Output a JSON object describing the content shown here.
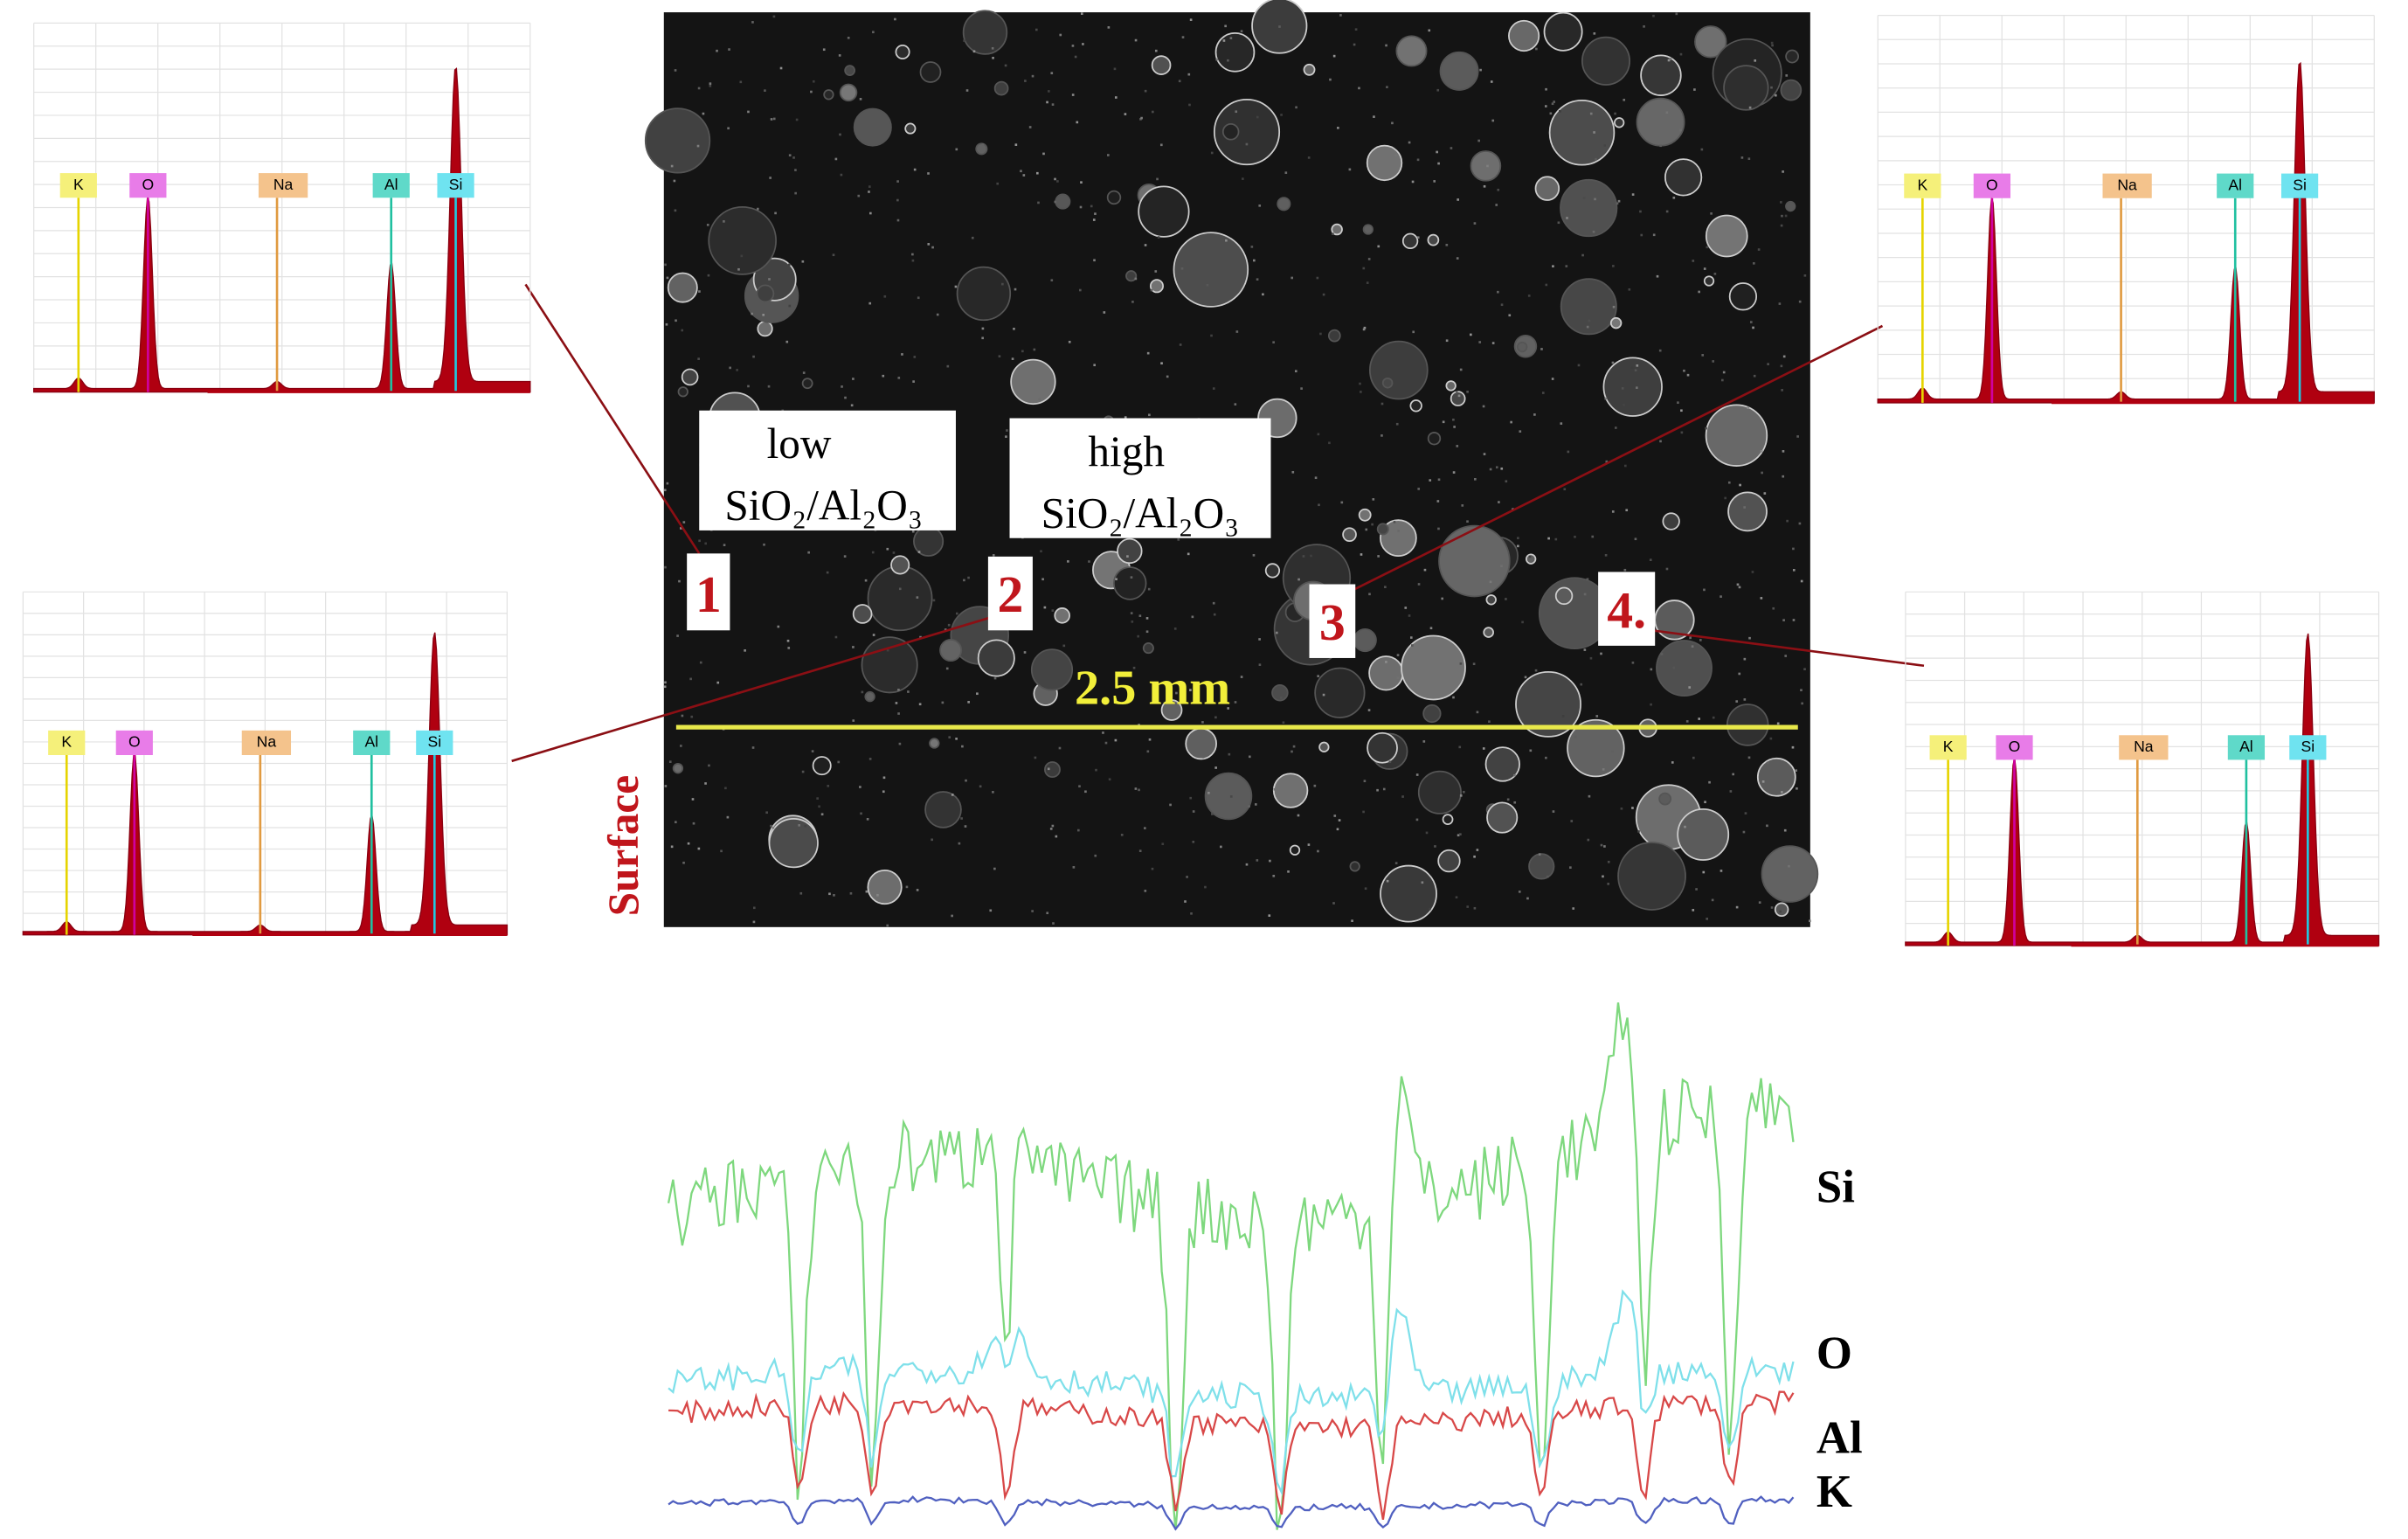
{
  "sem_image": {
    "scale_bar": "2.5 mm",
    "side_label": "Surface",
    "regions": [
      {
        "line1": "low",
        "line2": "SiO₂/Al₂O₃"
      },
      {
        "line1": "high",
        "line2": "SiO₂/Al₂O₃"
      }
    ],
    "points": [
      "1",
      "2",
      "3",
      "4."
    ]
  },
  "spectra": [
    {
      "elements": [
        "K",
        "O",
        "Na",
        "Al",
        "Si"
      ]
    },
    {
      "elements": [
        "K",
        "O",
        "Na",
        "Al",
        "Si"
      ]
    },
    {
      "elements": [
        "K",
        "O",
        "Na",
        "Al",
        "Si"
      ]
    },
    {
      "elements": [
        "K",
        "O",
        "Na",
        "Al",
        "Si"
      ]
    }
  ],
  "line_profile": {
    "labels": [
      "Si",
      "O",
      "Al",
      "K"
    ]
  }
}
